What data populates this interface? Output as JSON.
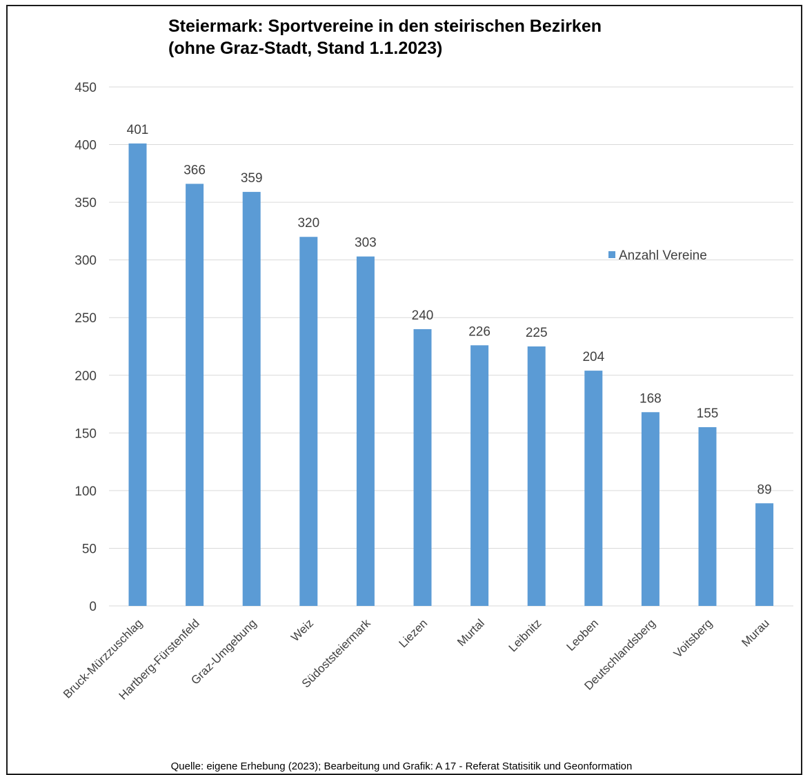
{
  "chart_data": {
    "type": "bar",
    "title_line1": "Steiermark: Sportvereine in den steirischen Bezirken",
    "title_line2": "(ohne Graz-Stadt, Stand 1.1.2023)",
    "categories": [
      "Bruck-Mürzzuschlag",
      "Hartberg-Fürstenfeld",
      "Graz-Umgebung",
      "Weiz",
      "Südoststeiermark",
      "Liezen",
      "Murtal",
      "Leibnitz",
      "Leoben",
      "Deutschlandsberg",
      "Voitsberg",
      "Murau"
    ],
    "series": [
      {
        "name": "Anzahl Vereine",
        "values": [
          401,
          366,
          359,
          320,
          303,
          240,
          226,
          225,
          204,
          168,
          155,
          89
        ]
      }
    ],
    "yticks": [
      0,
      50,
      100,
      150,
      200,
      250,
      300,
      350,
      400,
      450
    ],
    "ylim": [
      0,
      450
    ],
    "xlabel": "",
    "ylabel": "",
    "grid": true,
    "legend_position": "right",
    "data_labels": true,
    "colors": {
      "bar": "#5b9bd5",
      "grid": "#d9d9d9",
      "text": "#404040"
    }
  },
  "source": "Quelle: eigene Erhebung (2023); Bearbeitung und Grafik: A 17 - Referat Statisitik und Geonformation"
}
